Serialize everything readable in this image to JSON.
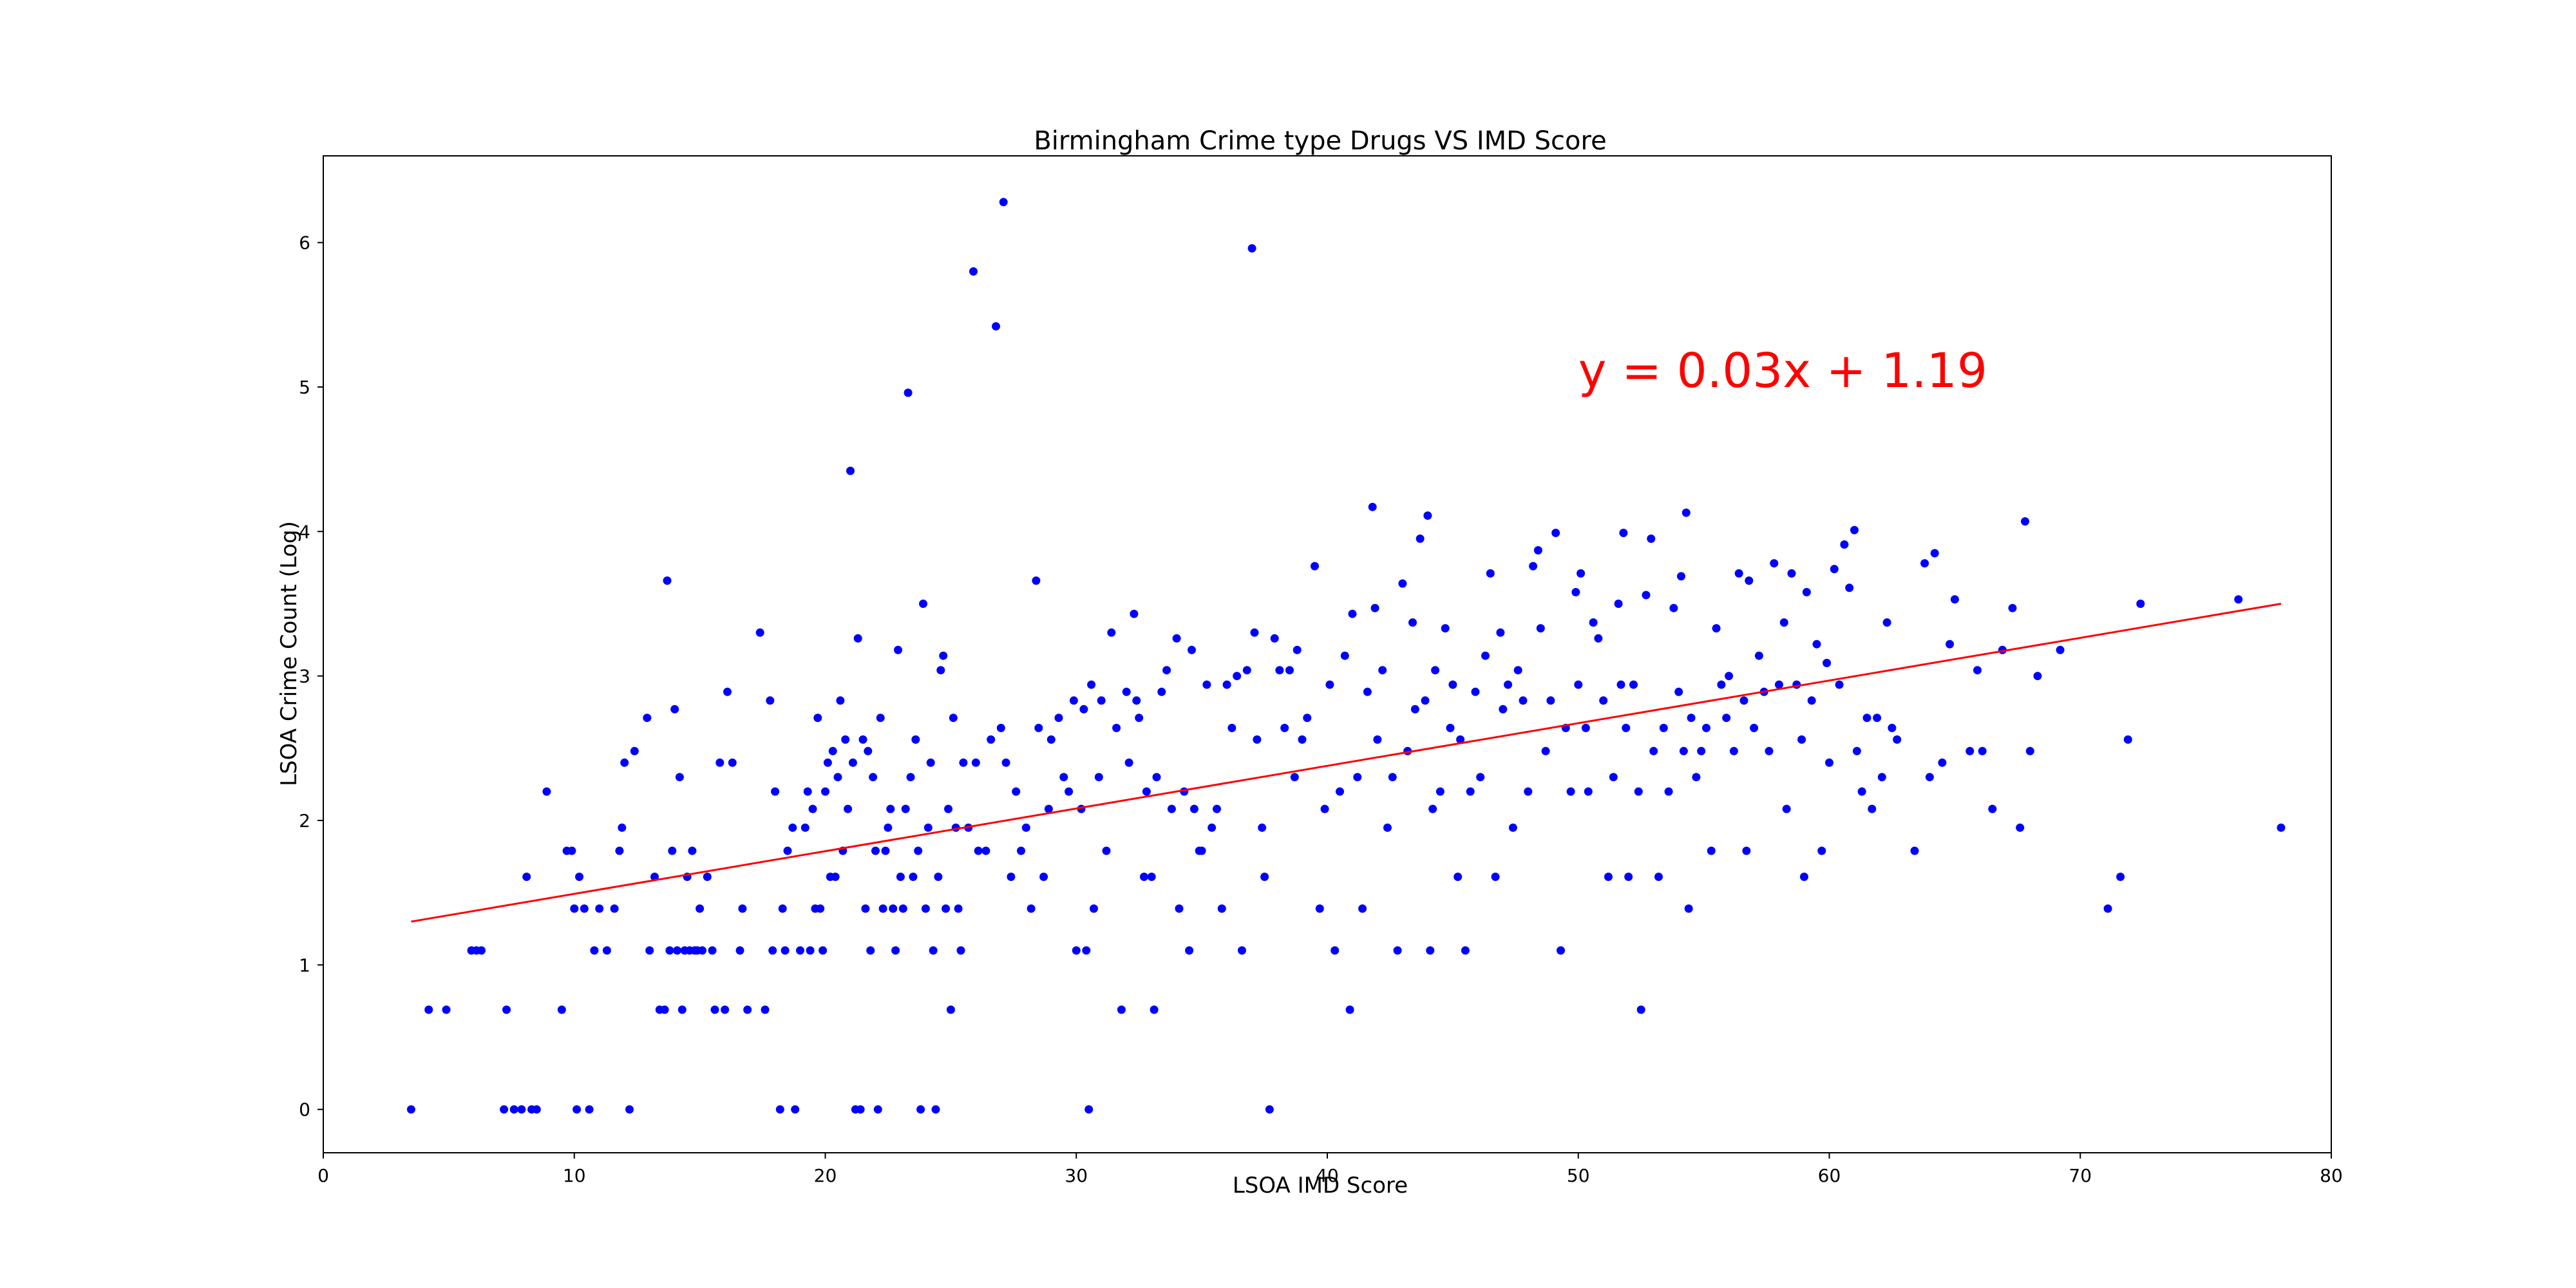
{
  "chart_data": {
    "type": "scatter",
    "title": "Birmingham Crime type Drugs VS IMD Score",
    "xlabel": "LSOA IMD Score",
    "ylabel": "LSOA Crime Count (Log)",
    "xlim": [
      0,
      80
    ],
    "ylim": [
      -0.3,
      6.6
    ],
    "xticks": [
      0,
      10,
      20,
      30,
      40,
      50,
      60,
      70,
      80
    ],
    "yticks": [
      0,
      1,
      2,
      3,
      4,
      5,
      6
    ],
    "grid": false,
    "colors": {
      "points": "#0000ff",
      "trendline": "#ff0000",
      "equation": "#ff0000",
      "frame": "#000000"
    },
    "annotation": {
      "text": "y = 0.03x + 1.19",
      "x": 50,
      "y": 5.0
    },
    "trendline": {
      "slope": 0.03,
      "intercept": 1.19,
      "x_start": 3.5,
      "y_start": 1.3,
      "x_end": 78,
      "y_end": 3.5
    },
    "points": [
      [
        3.5,
        0
      ],
      [
        4.2,
        0.69
      ],
      [
        4.9,
        0.69
      ],
      [
        5.9,
        1.1
      ],
      [
        6.1,
        1.1
      ],
      [
        6.3,
        1.1
      ],
      [
        7.2,
        0
      ],
      [
        7.3,
        0.69
      ],
      [
        7.6,
        0
      ],
      [
        7.9,
        0
      ],
      [
        8.1,
        1.61
      ],
      [
        8.3,
        0
      ],
      [
        8.5,
        0
      ],
      [
        8.9,
        2.2
      ],
      [
        9.5,
        0.69
      ],
      [
        9.7,
        1.79
      ],
      [
        9.9,
        1.79
      ],
      [
        10.0,
        1.39
      ],
      [
        10.1,
        0
      ],
      [
        10.2,
        1.61
      ],
      [
        10.4,
        1.39
      ],
      [
        10.6,
        0
      ],
      [
        10.8,
        1.1
      ],
      [
        11.0,
        1.39
      ],
      [
        11.3,
        1.1
      ],
      [
        11.6,
        1.39
      ],
      [
        11.8,
        1.79
      ],
      [
        11.9,
        1.95
      ],
      [
        12.0,
        2.4
      ],
      [
        12.2,
        0
      ],
      [
        12.4,
        2.48
      ],
      [
        12.9,
        2.71
      ],
      [
        13.0,
        1.1
      ],
      [
        13.2,
        1.61
      ],
      [
        13.4,
        0.69
      ],
      [
        13.6,
        0.69
      ],
      [
        13.7,
        3.66
      ],
      [
        13.8,
        1.1
      ],
      [
        13.9,
        1.79
      ],
      [
        14.0,
        2.77
      ],
      [
        14.1,
        1.1
      ],
      [
        14.2,
        2.3
      ],
      [
        14.3,
        0.69
      ],
      [
        14.4,
        1.1
      ],
      [
        14.5,
        1.61
      ],
      [
        14.6,
        1.1
      ],
      [
        14.7,
        1.79
      ],
      [
        14.8,
        1.1
      ],
      [
        14.9,
        1.1
      ],
      [
        15.0,
        1.39
      ],
      [
        15.1,
        1.1
      ],
      [
        15.3,
        1.61
      ],
      [
        15.5,
        1.1
      ],
      [
        15.6,
        0.69
      ],
      [
        15.8,
        2.4
      ],
      [
        16.0,
        0.69
      ],
      [
        16.1,
        2.89
      ],
      [
        16.3,
        2.4
      ],
      [
        16.6,
        1.1
      ],
      [
        16.7,
        1.39
      ],
      [
        16.9,
        0.69
      ],
      [
        17.4,
        3.3
      ],
      [
        17.6,
        0.69
      ],
      [
        17.8,
        2.83
      ],
      [
        17.9,
        1.1
      ],
      [
        18.0,
        2.2
      ],
      [
        18.2,
        0
      ],
      [
        18.3,
        1.39
      ],
      [
        18.4,
        1.1
      ],
      [
        18.5,
        1.79
      ],
      [
        18.7,
        1.95
      ],
      [
        18.8,
        0
      ],
      [
        19.0,
        1.1
      ],
      [
        19.2,
        1.95
      ],
      [
        19.3,
        2.2
      ],
      [
        19.4,
        1.1
      ],
      [
        19.5,
        2.08
      ],
      [
        19.6,
        1.39
      ],
      [
        19.7,
        2.71
      ],
      [
        19.8,
        1.39
      ],
      [
        19.9,
        1.1
      ],
      [
        20.0,
        2.2
      ],
      [
        20.1,
        2.4
      ],
      [
        20.2,
        1.61
      ],
      [
        20.3,
        2.48
      ],
      [
        20.4,
        1.61
      ],
      [
        20.5,
        2.3
      ],
      [
        20.6,
        2.83
      ],
      [
        20.7,
        1.79
      ],
      [
        20.8,
        2.56
      ],
      [
        20.9,
        2.08
      ],
      [
        21.0,
        4.42
      ],
      [
        21.1,
        2.4
      ],
      [
        21.2,
        0
      ],
      [
        21.3,
        3.26
      ],
      [
        21.4,
        0
      ],
      [
        21.5,
        2.56
      ],
      [
        21.6,
        1.39
      ],
      [
        21.7,
        2.48
      ],
      [
        21.8,
        1.1
      ],
      [
        21.9,
        2.3
      ],
      [
        22.0,
        1.79
      ],
      [
        22.1,
        0
      ],
      [
        22.2,
        2.71
      ],
      [
        22.3,
        1.39
      ],
      [
        22.4,
        1.79
      ],
      [
        22.5,
        1.95
      ],
      [
        22.6,
        2.08
      ],
      [
        22.7,
        1.39
      ],
      [
        22.8,
        1.1
      ],
      [
        22.9,
        3.18
      ],
      [
        23.0,
        1.61
      ],
      [
        23.1,
        1.39
      ],
      [
        23.2,
        2.08
      ],
      [
        23.3,
        4.96
      ],
      [
        23.4,
        2.3
      ],
      [
        23.5,
        1.61
      ],
      [
        23.6,
        2.56
      ],
      [
        23.7,
        1.79
      ],
      [
        23.8,
        0
      ],
      [
        23.9,
        3.5
      ],
      [
        24.0,
        1.39
      ],
      [
        24.1,
        1.95
      ],
      [
        24.2,
        2.4
      ],
      [
        24.3,
        1.1
      ],
      [
        24.4,
        0
      ],
      [
        24.5,
        1.61
      ],
      [
        24.6,
        3.04
      ],
      [
        24.7,
        3.14
      ],
      [
        24.8,
        1.39
      ],
      [
        24.9,
        2.08
      ],
      [
        25.0,
        0.69
      ],
      [
        25.1,
        2.71
      ],
      [
        25.2,
        1.95
      ],
      [
        25.3,
        1.39
      ],
      [
        25.4,
        1.1
      ],
      [
        25.5,
        2.4
      ],
      [
        25.7,
        1.95
      ],
      [
        25.9,
        5.8
      ],
      [
        26.0,
        2.4
      ],
      [
        26.1,
        1.79
      ],
      [
        26.4,
        1.79
      ],
      [
        26.6,
        2.56
      ],
      [
        26.8,
        5.42
      ],
      [
        27.0,
        2.64
      ],
      [
        27.1,
        6.28
      ],
      [
        27.2,
        2.4
      ],
      [
        27.4,
        1.61
      ],
      [
        27.6,
        2.2
      ],
      [
        27.8,
        1.79
      ],
      [
        28.0,
        1.95
      ],
      [
        28.2,
        1.39
      ],
      [
        28.4,
        3.66
      ],
      [
        28.5,
        2.64
      ],
      [
        28.7,
        1.61
      ],
      [
        28.9,
        2.08
      ],
      [
        29.0,
        2.56
      ],
      [
        29.3,
        2.71
      ],
      [
        29.5,
        2.3
      ],
      [
        29.7,
        2.2
      ],
      [
        29.9,
        2.83
      ],
      [
        30.0,
        1.1
      ],
      [
        30.2,
        2.08
      ],
      [
        30.3,
        2.77
      ],
      [
        30.4,
        1.1
      ],
      [
        30.5,
        0
      ],
      [
        30.6,
        2.94
      ],
      [
        30.7,
        1.39
      ],
      [
        30.9,
        2.3
      ],
      [
        31.0,
        2.83
      ],
      [
        31.2,
        1.79
      ],
      [
        31.4,
        3.3
      ],
      [
        31.6,
        2.64
      ],
      [
        31.8,
        0.69
      ],
      [
        32.0,
        2.89
      ],
      [
        32.1,
        2.4
      ],
      [
        32.3,
        3.43
      ],
      [
        32.4,
        2.83
      ],
      [
        32.5,
        2.71
      ],
      [
        32.7,
        1.61
      ],
      [
        32.8,
        2.2
      ],
      [
        33.0,
        1.61
      ],
      [
        33.1,
        0.69
      ],
      [
        33.2,
        2.3
      ],
      [
        33.4,
        2.89
      ],
      [
        33.6,
        3.04
      ],
      [
        33.8,
        2.08
      ],
      [
        34.0,
        3.26
      ],
      [
        34.1,
        1.39
      ],
      [
        34.3,
        2.2
      ],
      [
        34.5,
        1.1
      ],
      [
        34.6,
        3.18
      ],
      [
        34.7,
        2.08
      ],
      [
        34.9,
        1.79
      ],
      [
        35.0,
        1.79
      ],
      [
        35.2,
        2.94
      ],
      [
        35.4,
        1.95
      ],
      [
        35.6,
        2.08
      ],
      [
        35.8,
        1.39
      ],
      [
        36.0,
        2.94
      ],
      [
        36.2,
        2.64
      ],
      [
        36.4,
        3.0
      ],
      [
        36.6,
        1.1
      ],
      [
        36.8,
        3.04
      ],
      [
        37.0,
        5.96
      ],
      [
        37.1,
        3.3
      ],
      [
        37.2,
        2.56
      ],
      [
        37.4,
        1.95
      ],
      [
        37.5,
        1.61
      ],
      [
        37.7,
        0
      ],
      [
        37.9,
        3.26
      ],
      [
        38.1,
        3.04
      ],
      [
        38.3,
        2.64
      ],
      [
        38.5,
        3.04
      ],
      [
        38.7,
        2.3
      ],
      [
        38.8,
        3.18
      ],
      [
        39.0,
        2.56
      ],
      [
        39.2,
        2.71
      ],
      [
        39.5,
        3.76
      ],
      [
        39.7,
        1.39
      ],
      [
        39.9,
        2.08
      ],
      [
        40.1,
        2.94
      ],
      [
        40.3,
        1.1
      ],
      [
        40.5,
        2.2
      ],
      [
        40.7,
        3.14
      ],
      [
        40.9,
        0.69
      ],
      [
        41.0,
        3.43
      ],
      [
        41.2,
        2.3
      ],
      [
        41.4,
        1.39
      ],
      [
        41.6,
        2.89
      ],
      [
        41.8,
        4.17
      ],
      [
        41.9,
        3.47
      ],
      [
        42.0,
        2.56
      ],
      [
        42.2,
        3.04
      ],
      [
        42.4,
        1.95
      ],
      [
        42.6,
        2.3
      ],
      [
        42.8,
        1.1
      ],
      [
        43.0,
        3.64
      ],
      [
        43.2,
        2.48
      ],
      [
        43.4,
        3.37
      ],
      [
        43.5,
        2.77
      ],
      [
        43.7,
        3.95
      ],
      [
        43.9,
        2.83
      ],
      [
        44.0,
        4.11
      ],
      [
        44.1,
        1.1
      ],
      [
        44.2,
        2.08
      ],
      [
        44.3,
        3.04
      ],
      [
        44.5,
        2.2
      ],
      [
        44.7,
        3.33
      ],
      [
        44.9,
        2.64
      ],
      [
        45.0,
        2.94
      ],
      [
        45.2,
        1.61
      ],
      [
        45.3,
        2.56
      ],
      [
        45.5,
        1.1
      ],
      [
        45.7,
        2.2
      ],
      [
        45.9,
        2.89
      ],
      [
        46.1,
        2.3
      ],
      [
        46.3,
        3.14
      ],
      [
        46.5,
        3.71
      ],
      [
        46.7,
        1.61
      ],
      [
        46.9,
        3.3
      ],
      [
        47.0,
        2.77
      ],
      [
        47.2,
        2.94
      ],
      [
        47.4,
        1.95
      ],
      [
        47.6,
        3.04
      ],
      [
        47.8,
        2.83
      ],
      [
        48.0,
        2.2
      ],
      [
        48.2,
        3.76
      ],
      [
        48.4,
        3.87
      ],
      [
        48.5,
        3.33
      ],
      [
        48.7,
        2.48
      ],
      [
        48.9,
        2.83
      ],
      [
        49.1,
        3.99
      ],
      [
        49.3,
        1.1
      ],
      [
        49.5,
        2.64
      ],
      [
        49.7,
        2.2
      ],
      [
        49.9,
        3.58
      ],
      [
        50.0,
        2.94
      ],
      [
        50.1,
        3.71
      ],
      [
        50.3,
        2.64
      ],
      [
        50.4,
        2.2
      ],
      [
        50.6,
        3.37
      ],
      [
        50.8,
        3.26
      ],
      [
        51.0,
        2.83
      ],
      [
        51.2,
        1.61
      ],
      [
        51.4,
        2.3
      ],
      [
        51.6,
        3.5
      ],
      [
        51.7,
        2.94
      ],
      [
        51.8,
        3.99
      ],
      [
        51.9,
        2.64
      ],
      [
        52.0,
        1.61
      ],
      [
        52.2,
        2.94
      ],
      [
        52.4,
        2.2
      ],
      [
        52.5,
        0.69
      ],
      [
        52.7,
        3.56
      ],
      [
        52.9,
        3.95
      ],
      [
        53.0,
        2.48
      ],
      [
        53.2,
        1.61
      ],
      [
        53.4,
        2.64
      ],
      [
        53.6,
        2.2
      ],
      [
        53.8,
        3.47
      ],
      [
        54.0,
        2.89
      ],
      [
        54.1,
        3.69
      ],
      [
        54.2,
        2.48
      ],
      [
        54.3,
        4.13
      ],
      [
        54.4,
        1.39
      ],
      [
        54.5,
        2.71
      ],
      [
        54.7,
        2.3
      ],
      [
        54.9,
        2.48
      ],
      [
        55.1,
        2.64
      ],
      [
        55.3,
        1.79
      ],
      [
        55.5,
        3.33
      ],
      [
        55.7,
        2.94
      ],
      [
        55.9,
        2.71
      ],
      [
        56.0,
        3.0
      ],
      [
        56.2,
        2.48
      ],
      [
        56.4,
        3.71
      ],
      [
        56.6,
        2.83
      ],
      [
        56.7,
        1.79
      ],
      [
        56.8,
        3.66
      ],
      [
        57.0,
        2.64
      ],
      [
        57.2,
        3.14
      ],
      [
        57.4,
        2.89
      ],
      [
        57.6,
        2.48
      ],
      [
        57.8,
        3.78
      ],
      [
        58.0,
        2.94
      ],
      [
        58.2,
        3.37
      ],
      [
        58.3,
        2.08
      ],
      [
        58.5,
        3.71
      ],
      [
        58.7,
        2.94
      ],
      [
        58.9,
        2.56
      ],
      [
        59.0,
        1.61
      ],
      [
        59.1,
        3.58
      ],
      [
        59.3,
        2.83
      ],
      [
        59.5,
        3.22
      ],
      [
        59.7,
        1.79
      ],
      [
        59.9,
        3.09
      ],
      [
        60.0,
        2.4
      ],
      [
        60.2,
        3.74
      ],
      [
        60.4,
        2.94
      ],
      [
        60.6,
        3.91
      ],
      [
        60.8,
        3.61
      ],
      [
        61.0,
        4.01
      ],
      [
        61.1,
        2.48
      ],
      [
        61.3,
        2.2
      ],
      [
        61.5,
        2.71
      ],
      [
        61.7,
        2.08
      ],
      [
        61.9,
        2.71
      ],
      [
        62.1,
        2.3
      ],
      [
        62.3,
        3.37
      ],
      [
        62.5,
        2.64
      ],
      [
        62.7,
        2.56
      ],
      [
        63.4,
        1.79
      ],
      [
        63.8,
        3.78
      ],
      [
        64.0,
        2.3
      ],
      [
        64.2,
        3.85
      ],
      [
        64.5,
        2.4
      ],
      [
        64.8,
        3.22
      ],
      [
        65.0,
        3.53
      ],
      [
        65.6,
        2.48
      ],
      [
        65.9,
        3.04
      ],
      [
        66.1,
        2.48
      ],
      [
        66.5,
        2.08
      ],
      [
        66.9,
        3.18
      ],
      [
        67.3,
        3.47
      ],
      [
        67.6,
        1.95
      ],
      [
        67.8,
        4.07
      ],
      [
        68.0,
        2.48
      ],
      [
        68.3,
        3.0
      ],
      [
        69.2,
        3.18
      ],
      [
        71.1,
        1.39
      ],
      [
        71.6,
        1.61
      ],
      [
        71.9,
        2.56
      ],
      [
        72.4,
        3.5
      ],
      [
        76.3,
        3.53
      ],
      [
        78.0,
        1.95
      ]
    ]
  }
}
